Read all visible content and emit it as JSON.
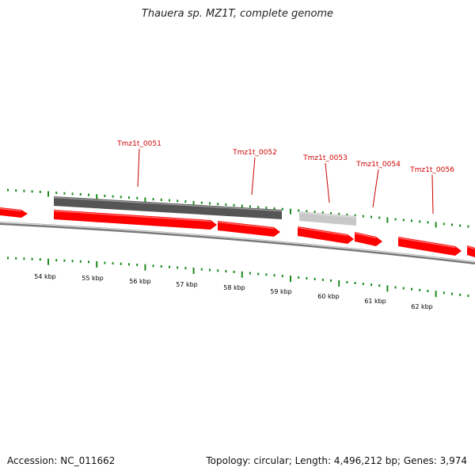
{
  "title": "Thauera sp. MZ1T, complete genome",
  "footer": {
    "accession": "Accession: NC_011662",
    "summary": "Topology: circular; Length: 4,496,212 bp; Genes: 3,974"
  },
  "colors": {
    "gene": "#ff0000",
    "gene_dark": "#cc0000",
    "cds_dark": "#555555",
    "cds_light": "#c8c8c8",
    "tick": "#1a8a1a",
    "backbone": "#777777",
    "label": "#cc0000"
  },
  "gene_labels": [
    "Tmz1t_0051",
    "Tmz1t_0052",
    "Tmz1t_0053",
    "Tmz1t_0054",
    "Tmz1t_0056"
  ],
  "kbp_labels": [
    "54 kbp",
    "55 kbp",
    "56 kbp",
    "57 kbp",
    "58 kbp",
    "59 kbp",
    "60 kbp",
    "61 kbp",
    "62 kbp"
  ]
}
